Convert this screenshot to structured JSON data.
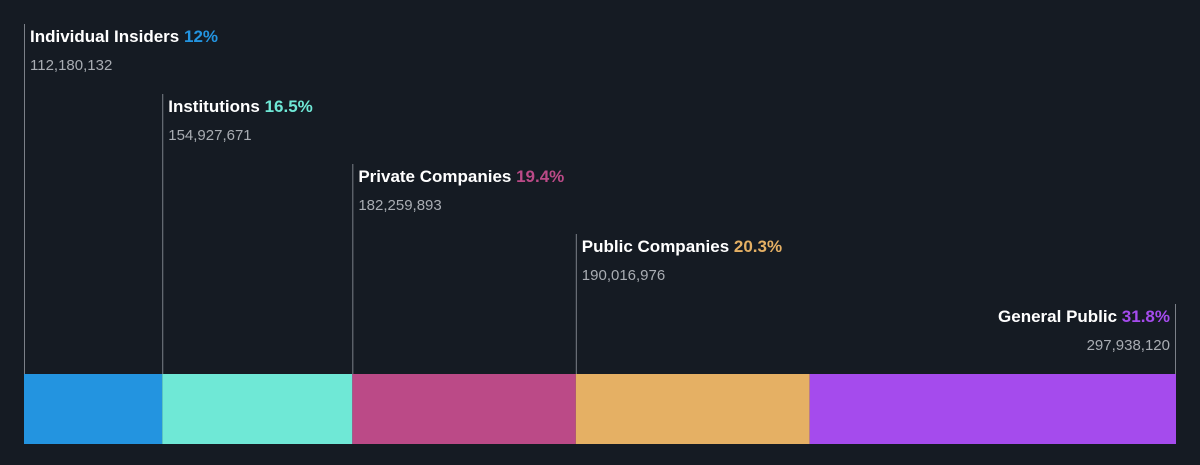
{
  "chart_data": {
    "type": "bar",
    "orientation": "stacked-horizontal",
    "categories": [
      "Individual Insiders",
      "Institutions",
      "Private Companies",
      "Public Companies",
      "General Public"
    ],
    "percent_labels": [
      "12%",
      "16.5%",
      "19.4%",
      "20.3%",
      "31.8%"
    ],
    "percents": [
      12,
      16.5,
      19.4,
      20.3,
      31.8
    ],
    "values": [
      112180132,
      154927671,
      182259893,
      190016976,
      297938120
    ],
    "value_labels": [
      "112,180,132",
      "154,927,671",
      "182,259,893",
      "190,016,976",
      "297,938,120"
    ],
    "colors": [
      "#2394e0",
      "#6fe8d6",
      "#bb4a87",
      "#e5b064",
      "#a54bed"
    ],
    "background": "#151b23",
    "grid": false,
    "title": "",
    "xlabel": "",
    "ylabel": ""
  }
}
